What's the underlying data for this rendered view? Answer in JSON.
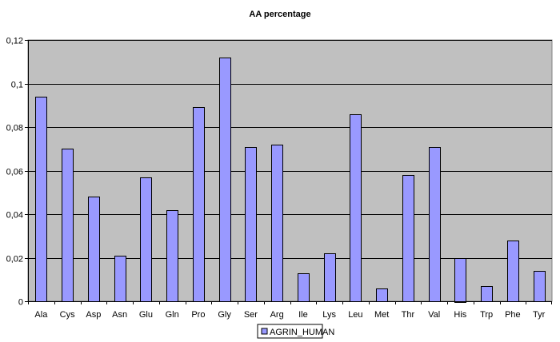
{
  "chart_data": {
    "type": "bar",
    "title": "AA percentage",
    "xlabel": "",
    "ylabel": "",
    "categories": [
      "Ala",
      "Cys",
      "Asp",
      "Asn",
      "Glu",
      "Gln",
      "Pro",
      "Gly",
      "Ser",
      "Arg",
      "Ile",
      "Lys",
      "Leu",
      "Met",
      "Thr",
      "Val",
      "His",
      "Trp",
      "Phe",
      "Tyr"
    ],
    "series": [
      {
        "name": "AGRIN_HUMAN",
        "values": [
          0.094,
          0.07,
          0.048,
          0.021,
          0.057,
          0.042,
          0.089,
          0.112,
          0.071,
          0.072,
          0.013,
          0.022,
          0.086,
          0.006,
          0.058,
          0.071,
          0.02,
          0.007,
          0.028,
          0.014
        ]
      }
    ],
    "ylim": [
      0,
      0.12
    ],
    "yticks": [
      0,
      0.02,
      0.04,
      0.06,
      0.08,
      0.1,
      0.12
    ],
    "ytick_labels": [
      "0",
      "0,02",
      "0,04",
      "0,06",
      "0,08",
      "0,1",
      "0,12"
    ],
    "grid": true,
    "legend_position": "bottom",
    "colors": {
      "plot_background": "#c0c0c0",
      "bar_fill": "#9999ff",
      "bar_stroke": "#000000",
      "gridline": "#000000"
    }
  }
}
